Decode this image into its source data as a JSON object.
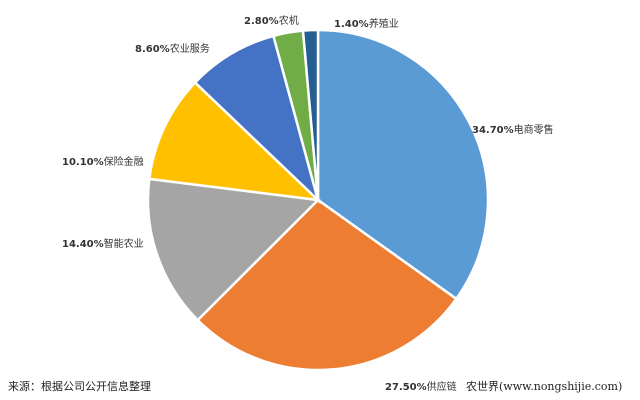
{
  "chart_data": {
    "type": "pie",
    "start_angle": "12 o'clock",
    "direction": "clockwise",
    "slices": [
      {
        "label": "电商零售",
        "value": 34.7,
        "display": "34.70%",
        "color": "#5B9BD5"
      },
      {
        "label": "供应链",
        "value": 27.5,
        "display": "27.50%",
        "color": "#ED7D31"
      },
      {
        "label": "智能农业",
        "value": 14.4,
        "display": "14.40%",
        "color": "#A5A5A5"
      },
      {
        "label": "保险金融",
        "value": 10.1,
        "display": "10.10%",
        "color": "#FFC000"
      },
      {
        "label": "农业服务",
        "value": 8.6,
        "display": "8.60%",
        "color": "#4472C4"
      },
      {
        "label": "农机",
        "value": 2.8,
        "display": "2.80%",
        "color": "#70AD47"
      },
      {
        "label": "养殖业",
        "value": 1.4,
        "display": "1.40%",
        "color": "#255E91"
      }
    ]
  },
  "footer": {
    "source": "来源：根据公司公开信息整理",
    "watermark": "农世界(www.nongshijie.com)"
  }
}
